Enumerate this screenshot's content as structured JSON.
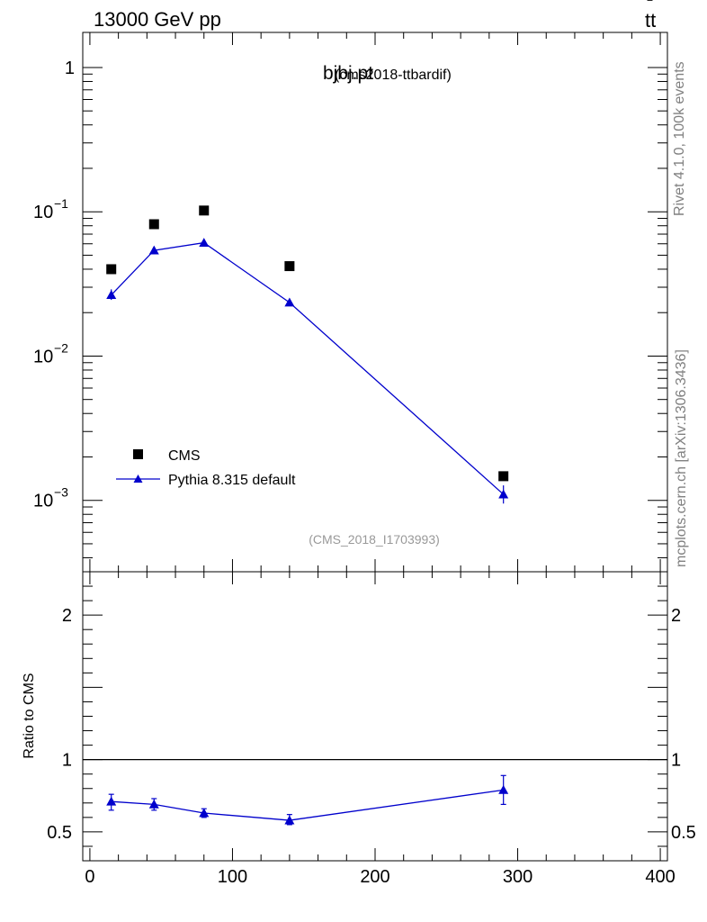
{
  "header": {
    "left": "13000 GeV pp",
    "right_main": "tt",
    "right_bar": "‾"
  },
  "side": {
    "rivet": "Rivet 4.1.0,  100k events",
    "mcplots": "mcplots.cern.ch [arXiv:1306.3436]"
  },
  "colors": {
    "mc": "#0000cc",
    "data": "#000000",
    "analysis_label": "#999999"
  },
  "chart_data": [
    {
      "type": "scatter",
      "title": "bjbj.pt",
      "subtitle": "(cms2018-ttbardif)",
      "analysis_label": "(CMS_2018_I1703993)",
      "yscale": "log",
      "xlim": [
        -5,
        405
      ],
      "ylim": [
        0.00032,
        1.75
      ],
      "y_ticks": [
        {
          "value": 1,
          "label": "1",
          "exp": ""
        },
        {
          "value": 0.1,
          "label": "10",
          "exp": "−1"
        },
        {
          "value": 0.01,
          "label": "10",
          "exp": "−2"
        },
        {
          "value": 0.001,
          "label": "10",
          "exp": "−3"
        }
      ],
      "legend": {
        "position": "bottom-left",
        "entries": [
          "CMS",
          "Pythia 8.315 default"
        ]
      },
      "series": [
        {
          "name": "CMS",
          "marker": "square",
          "x": [
            15,
            45,
            80,
            140,
            290
          ],
          "y": [
            0.04,
            0.082,
            0.102,
            0.042,
            0.00147
          ]
        },
        {
          "name": "Pythia 8.315 default",
          "marker": "triangle",
          "x": [
            15,
            45,
            80,
            140,
            290
          ],
          "y": [
            0.0265,
            0.054,
            0.061,
            0.0235,
            0.0011
          ],
          "err_lo": [
            0.0245,
            0.052,
            0.0595,
            0.023,
            0.00095
          ],
          "err_hi": [
            0.029,
            0.056,
            0.0625,
            0.024,
            0.00127
          ]
        }
      ]
    },
    {
      "type": "line",
      "ylabel": "Ratio to CMS",
      "xlim": [
        -5,
        405
      ],
      "ylim": [
        0.3,
        2.3
      ],
      "x_ticks": [
        0,
        100,
        200,
        300,
        400
      ],
      "y_ticks": [
        0.5,
        1,
        2
      ],
      "reference_line": 1,
      "series": [
        {
          "name": "Pythia 8.315 default",
          "x": [
            15,
            45,
            80,
            140,
            290
          ],
          "y": [
            0.71,
            0.69,
            0.63,
            0.58,
            0.79
          ],
          "err_lo": [
            0.65,
            0.65,
            0.6,
            0.55,
            0.69
          ],
          "err_hi": [
            0.76,
            0.73,
            0.66,
            0.62,
            0.89
          ]
        }
      ]
    }
  ]
}
